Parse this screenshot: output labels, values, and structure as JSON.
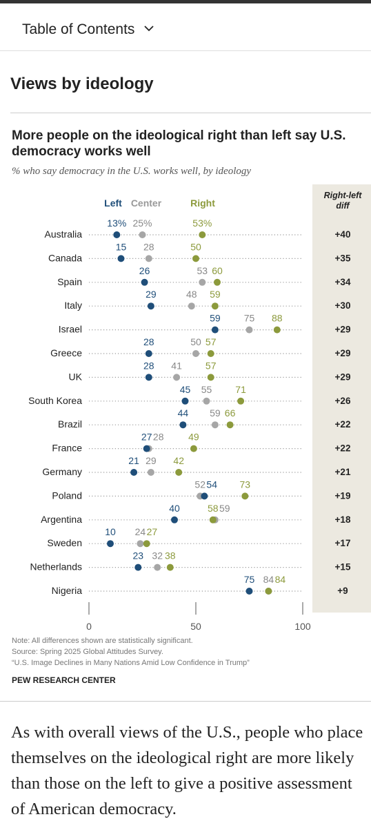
{
  "toc": {
    "label": "Table of Contents",
    "chevron_icon": "chevron-down-icon"
  },
  "section": {
    "title": "Views by ideology"
  },
  "chart": {
    "title": "More people on the ideological right than left say U.S. democracy works well",
    "subtitle": "% who say democracy in the U.S. works well, by ideology",
    "notes": [
      "Note: All differences shown are statistically significant.",
      "Source: Spring 2025 Global Attitudes Survey.",
      "“U.S. Image Declines in Many Nations Amid Low Confidence in Trump”"
    ],
    "brand": "PEW RESEARCH CENTER"
  },
  "chart_data": {
    "type": "scatter",
    "legend": {
      "left": "Left",
      "center": "Center",
      "right": "Right"
    },
    "diff_header": [
      "Right-left",
      "diff"
    ],
    "xlim": [
      0,
      100
    ],
    "x_ticks": [
      "0",
      "50",
      "100"
    ],
    "colors": {
      "left": "#1f4e79",
      "center": "#a6a6a6",
      "right": "#8c9a3c",
      "diff_bg": "#ece9e0"
    },
    "rows": [
      {
        "country": "Australia",
        "left": 13,
        "center": 25,
        "right": 53,
        "diff": "+40",
        "left_label": "13%",
        "center_label": "25%",
        "right_label": "53%"
      },
      {
        "country": "Canada",
        "left": 15,
        "center": 28,
        "right": 50,
        "diff": "+35",
        "left_label": "15",
        "center_label": "28",
        "right_label": "50"
      },
      {
        "country": "Spain",
        "left": 26,
        "center": 53,
        "right": 60,
        "diff": "+34",
        "left_label": "26",
        "center_label": "53",
        "right_label": "60"
      },
      {
        "country": "Italy",
        "left": 29,
        "center": 48,
        "right": 59,
        "diff": "+30",
        "left_label": "29",
        "center_label": "48",
        "right_label": "59"
      },
      {
        "country": "Israel",
        "left": 59,
        "center": 75,
        "right": 88,
        "diff": "+29",
        "left_label": "59",
        "center_label": "75",
        "right_label": "88"
      },
      {
        "country": "Greece",
        "left": 28,
        "center": 50,
        "right": 57,
        "diff": "+29",
        "left_label": "28",
        "center_label": "50",
        "right_label": "57"
      },
      {
        "country": "UK",
        "left": 28,
        "center": 41,
        "right": 57,
        "diff": "+29",
        "left_label": "28",
        "center_label": "41",
        "right_label": "57"
      },
      {
        "country": "South Korea",
        "left": 45,
        "center": 55,
        "right": 71,
        "diff": "+26",
        "left_label": "45",
        "center_label": "55",
        "right_label": "71"
      },
      {
        "country": "Brazil",
        "left": 44,
        "center": 59,
        "right": 66,
        "diff": "+22",
        "left_label": "44",
        "center_label": "59",
        "right_label": "66"
      },
      {
        "country": "France",
        "left": 27,
        "center": 28,
        "right": 49,
        "diff": "+22",
        "left_label": "27",
        "center_label": "28",
        "right_label": "49"
      },
      {
        "country": "Germany",
        "left": 21,
        "center": 29,
        "right": 42,
        "diff": "+21",
        "left_label": "21",
        "center_label": "29",
        "right_label": "42"
      },
      {
        "country": "Poland",
        "left": 54,
        "center": 52,
        "right": 73,
        "diff": "+19",
        "left_label": "54",
        "center_label": "52",
        "right_label": "73"
      },
      {
        "country": "Argentina",
        "left": 40,
        "center": 59,
        "right": 58,
        "diff": "+18",
        "left_label": "40",
        "center_label": "59",
        "right_label": "58"
      },
      {
        "country": "Sweden",
        "left": 10,
        "center": 24,
        "right": 27,
        "diff": "+17",
        "left_label": "10",
        "center_label": "24",
        "right_label": "27"
      },
      {
        "country": "Netherlands",
        "left": 23,
        "center": 32,
        "right": 38,
        "diff": "+15",
        "left_label": "23",
        "center_label": "32",
        "right_label": "38"
      },
      {
        "country": "Nigeria",
        "left": 75,
        "center": 84,
        "right": 84,
        "diff": "+9",
        "left_label": "75",
        "center_label": "84",
        "right_label": "84"
      }
    ]
  },
  "article": {
    "paragraph": "As with overall views of the U.S., people who place themselves on the ideological right are more likely than those on the left to give a positive assessment of American democracy."
  }
}
